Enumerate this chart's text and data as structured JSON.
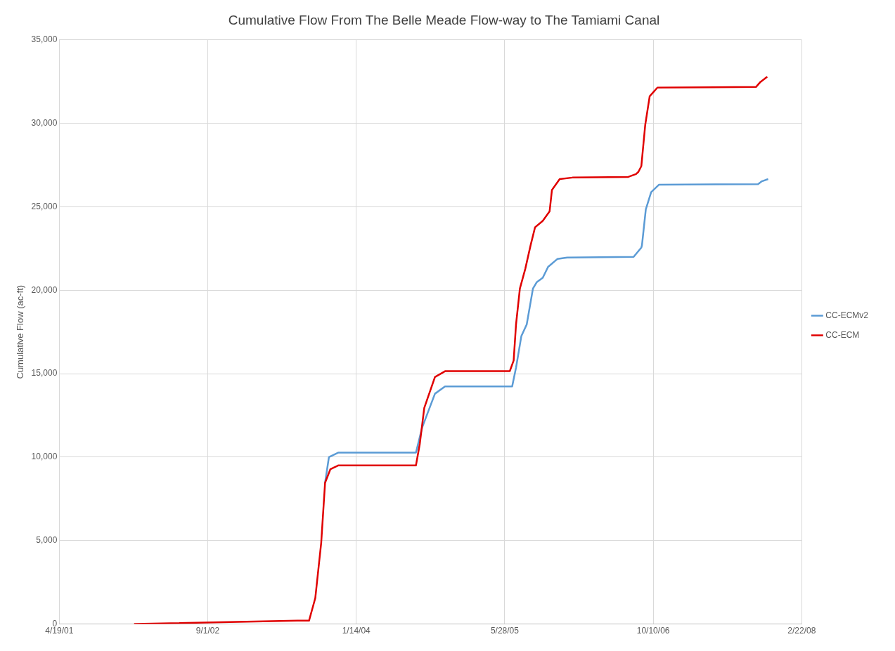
{
  "chart_data": {
    "type": "line",
    "title": "Cumulative Flow From The Belle Meade Flow-way to The Tamiami Canal",
    "ylabel": "Cumulative Flow (ac-ft)",
    "xlim": [
      "2001-04-19",
      "2008-02-22"
    ],
    "xticks": [
      {
        "value": "2001-04-19",
        "label": "4/19/01"
      },
      {
        "value": "2002-09-01",
        "label": "9/1/02"
      },
      {
        "value": "2004-01-14",
        "label": "1/14/04"
      },
      {
        "value": "2005-05-28",
        "label": "5/28/05"
      },
      {
        "value": "2006-10-10",
        "label": "10/10/06"
      },
      {
        "value": "2008-02-22",
        "label": "2/22/08"
      }
    ],
    "ylim": [
      0,
      35000
    ],
    "yticks": [
      {
        "value": 0,
        "label": "0"
      },
      {
        "value": 5000,
        "label": "5,000"
      },
      {
        "value": 10000,
        "label": "10,000"
      },
      {
        "value": 15000,
        "label": "15,000"
      },
      {
        "value": 20000,
        "label": "20,000"
      },
      {
        "value": 25000,
        "label": "25,000"
      },
      {
        "value": 30000,
        "label": "30,000"
      },
      {
        "value": 35000,
        "label": "35,000"
      }
    ],
    "grid": true,
    "legend": "right",
    "marker": "none",
    "line_style": "solid",
    "series": [
      {
        "name": "CC-ECMv2",
        "color": "#5b9bd5",
        "x": [
          "2003-10-01",
          "2003-10-14",
          "2003-11-14",
          "2004-08-02",
          "2004-08-23",
          "2004-10-05",
          "2004-11-08",
          "2005-06-22",
          "2005-07-05",
          "2005-07-23",
          "2005-08-10",
          "2005-08-31",
          "2005-09-13",
          "2005-10-03",
          "2005-10-21",
          "2005-11-21",
          "2005-12-24",
          "2006-08-05",
          "2006-08-31",
          "2006-09-02",
          "2006-09-15",
          "2006-10-03",
          "2006-10-29",
          "2007-09-28",
          "2007-10-11",
          "2007-11-01"
        ],
        "values": [
          8460,
          10000,
          10270,
          10270,
          11780,
          13800,
          14240,
          14240,
          15360,
          17260,
          17950,
          20100,
          20490,
          20750,
          21400,
          21870,
          21960,
          22000,
          22560,
          22690,
          24850,
          25880,
          26320,
          26360,
          26530,
          26660
        ]
      },
      {
        "name": "CC-ECM",
        "color": "#e00000",
        "x": [
          "2001-12-27",
          "2003-06-30",
          "2003-08-08",
          "2003-08-29",
          "2003-09-18",
          "2003-10-01",
          "2003-10-19",
          "2003-11-14",
          "2004-08-02",
          "2004-08-15",
          "2004-08-30",
          "2004-10-05",
          "2004-11-08",
          "2005-06-14",
          "2005-06-27",
          "2005-07-05",
          "2005-07-18",
          "2005-08-05",
          "2005-08-23",
          "2005-09-07",
          "2005-10-03",
          "2005-10-26",
          "2005-11-03",
          "2005-11-29",
          "2006-01-11",
          "2006-07-18",
          "2006-08-13",
          "2006-08-21",
          "2006-08-31",
          "2006-09-13",
          "2006-09-28",
          "2006-10-24",
          "2007-09-21",
          "2007-10-06",
          "2007-10-29"
        ],
        "values": [
          0,
          200,
          200,
          1550,
          4870,
          8460,
          9280,
          9500,
          9500,
          10800,
          12950,
          14800,
          15150,
          15150,
          15790,
          17950,
          20100,
          21270,
          22690,
          23770,
          24160,
          24720,
          26010,
          26660,
          26750,
          26790,
          26960,
          27090,
          27440,
          29900,
          31620,
          32140,
          32180,
          32480,
          32790
        ]
      }
    ]
  }
}
